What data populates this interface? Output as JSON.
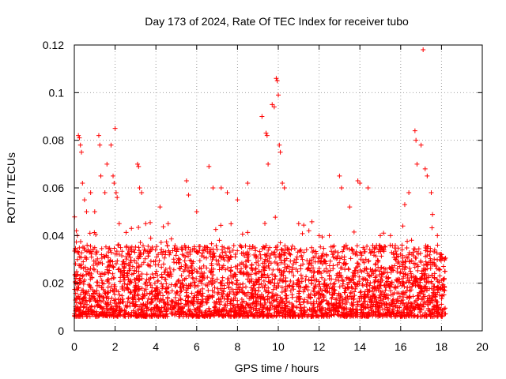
{
  "chart_data": {
    "type": "scatter",
    "title": "Day 173 of 2024, Rate Of TEC Index for receiver tubo",
    "xlabel": "GPS time / hours",
    "ylabel": "ROTI / TECUs",
    "xlim": [
      0,
      20
    ],
    "ylim": [
      0,
      0.12
    ],
    "xticks": [
      "0",
      "2",
      "4",
      "6",
      "8",
      "10",
      "12",
      "14",
      "16",
      "18",
      "20"
    ],
    "yticks": [
      "0",
      "0.02",
      "0.04",
      "0.06",
      "0.08",
      "0.1",
      "0.12"
    ],
    "grid": true,
    "marker": "+",
    "color": "#ff0000",
    "data_range_hours": [
      0,
      18.2
    ],
    "series": [
      {
        "name": "ROTI",
        "points": [
          [
            0.1,
            0.042
          ],
          [
            0.15,
            0.04
          ],
          [
            0.2,
            0.082
          ],
          [
            0.25,
            0.081
          ],
          [
            0.3,
            0.078
          ],
          [
            0.35,
            0.075
          ],
          [
            0.4,
            0.062
          ],
          [
            0.5,
            0.055
          ],
          [
            0.6,
            0.05
          ],
          [
            0.8,
            0.058
          ],
          [
            1.0,
            0.05
          ],
          [
            1.2,
            0.082
          ],
          [
            1.25,
            0.078
          ],
          [
            1.3,
            0.065
          ],
          [
            1.5,
            0.058
          ],
          [
            1.6,
            0.07
          ],
          [
            1.8,
            0.078
          ],
          [
            1.9,
            0.065
          ],
          [
            1.95,
            0.062
          ],
          [
            2.0,
            0.085
          ],
          [
            2.05,
            0.058
          ],
          [
            2.1,
            0.056
          ],
          [
            2.2,
            0.045
          ],
          [
            2.8,
            0.043
          ],
          [
            3.1,
            0.07
          ],
          [
            3.15,
            0.069
          ],
          [
            3.2,
            0.06
          ],
          [
            3.3,
            0.058
          ],
          [
            3.5,
            0.045
          ],
          [
            4.2,
            0.052
          ],
          [
            4.6,
            0.045
          ],
          [
            5.5,
            0.063
          ],
          [
            5.6,
            0.057
          ],
          [
            6.0,
            0.05
          ],
          [
            6.6,
            0.069
          ],
          [
            6.8,
            0.06
          ],
          [
            7.2,
            0.06
          ],
          [
            7.5,
            0.058
          ],
          [
            8.0,
            0.055
          ],
          [
            8.5,
            0.062
          ],
          [
            9.2,
            0.09
          ],
          [
            9.4,
            0.083
          ],
          [
            9.45,
            0.082
          ],
          [
            9.5,
            0.07
          ],
          [
            9.7,
            0.095
          ],
          [
            9.8,
            0.094
          ],
          [
            9.9,
            0.106
          ],
          [
            9.95,
            0.105
          ],
          [
            10.0,
            0.099
          ],
          [
            10.05,
            0.078
          ],
          [
            10.1,
            0.075
          ],
          [
            10.2,
            0.062
          ],
          [
            10.3,
            0.06
          ],
          [
            11.0,
            0.045
          ],
          [
            11.5,
            0.042
          ],
          [
            12.0,
            0.04
          ],
          [
            12.5,
            0.04
          ],
          [
            13.0,
            0.065
          ],
          [
            13.1,
            0.06
          ],
          [
            13.5,
            0.052
          ],
          [
            13.9,
            0.063
          ],
          [
            14.0,
            0.062
          ],
          [
            14.4,
            0.06
          ],
          [
            15.0,
            0.04
          ],
          [
            15.5,
            0.04
          ],
          [
            16.2,
            0.053
          ],
          [
            16.4,
            0.058
          ],
          [
            16.7,
            0.084
          ],
          [
            16.75,
            0.08
          ],
          [
            16.8,
            0.07
          ],
          [
            17.0,
            0.078
          ],
          [
            17.1,
            0.118
          ],
          [
            17.2,
            0.068
          ],
          [
            17.3,
            0.065
          ],
          [
            17.5,
            0.058
          ],
          [
            17.8,
            0.04
          ],
          [
            18.0,
            0.032
          ]
        ]
      }
    ]
  }
}
